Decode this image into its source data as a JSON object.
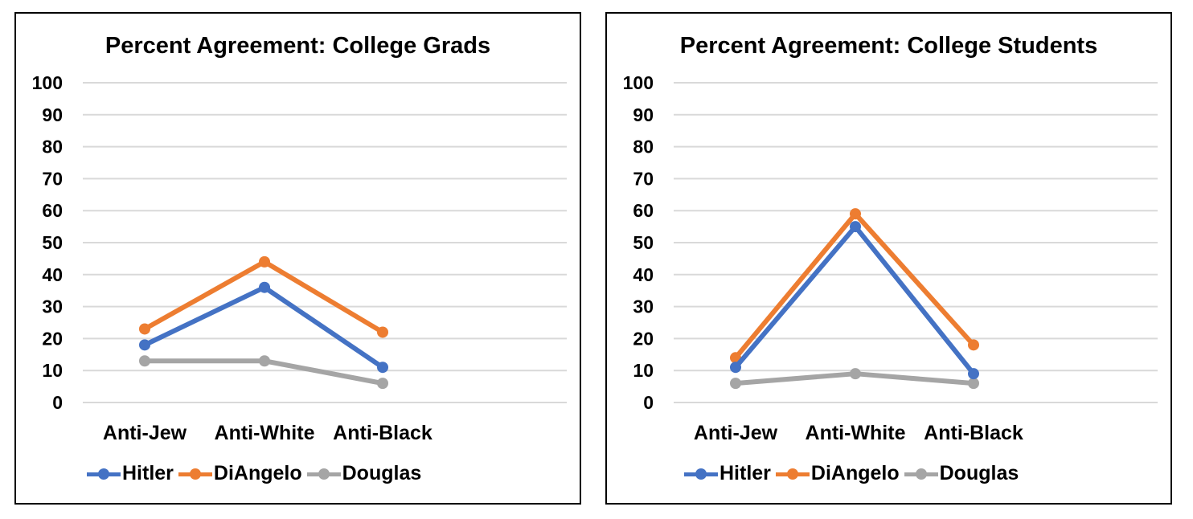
{
  "colors": {
    "Hitler": "#4472C4",
    "DiAngelo": "#ED7D31",
    "Douglas": "#A5A5A5",
    "grid": "#D9D9D9"
  },
  "chart_data": [
    {
      "type": "line",
      "title": "Percent Agreement: College Grads",
      "categories": [
        "Anti-Jew",
        "Anti-White",
        "Anti-Black"
      ],
      "ylim": [
        0,
        100
      ],
      "yticks": [
        0,
        10,
        20,
        30,
        40,
        50,
        60,
        70,
        80,
        90,
        100
      ],
      "grid": true,
      "legend": "bottom",
      "series": [
        {
          "name": "Hitler",
          "values": [
            18,
            36,
            11
          ]
        },
        {
          "name": "DiAngelo",
          "values": [
            23,
            44,
            22
          ]
        },
        {
          "name": "Douglas",
          "values": [
            13,
            13,
            6
          ]
        }
      ]
    },
    {
      "type": "line",
      "title": "Percent Agreement: College Students",
      "categories": [
        "Anti-Jew",
        "Anti-White",
        "Anti-Black"
      ],
      "ylim": [
        0,
        100
      ],
      "yticks": [
        0,
        10,
        20,
        30,
        40,
        50,
        60,
        70,
        80,
        90,
        100
      ],
      "grid": true,
      "legend": "bottom",
      "series": [
        {
          "name": "Hitler",
          "values": [
            11,
            55,
            9
          ]
        },
        {
          "name": "DiAngelo",
          "values": [
            14,
            59,
            18
          ]
        },
        {
          "name": "Douglas",
          "values": [
            6,
            9,
            6
          ]
        }
      ]
    }
  ]
}
